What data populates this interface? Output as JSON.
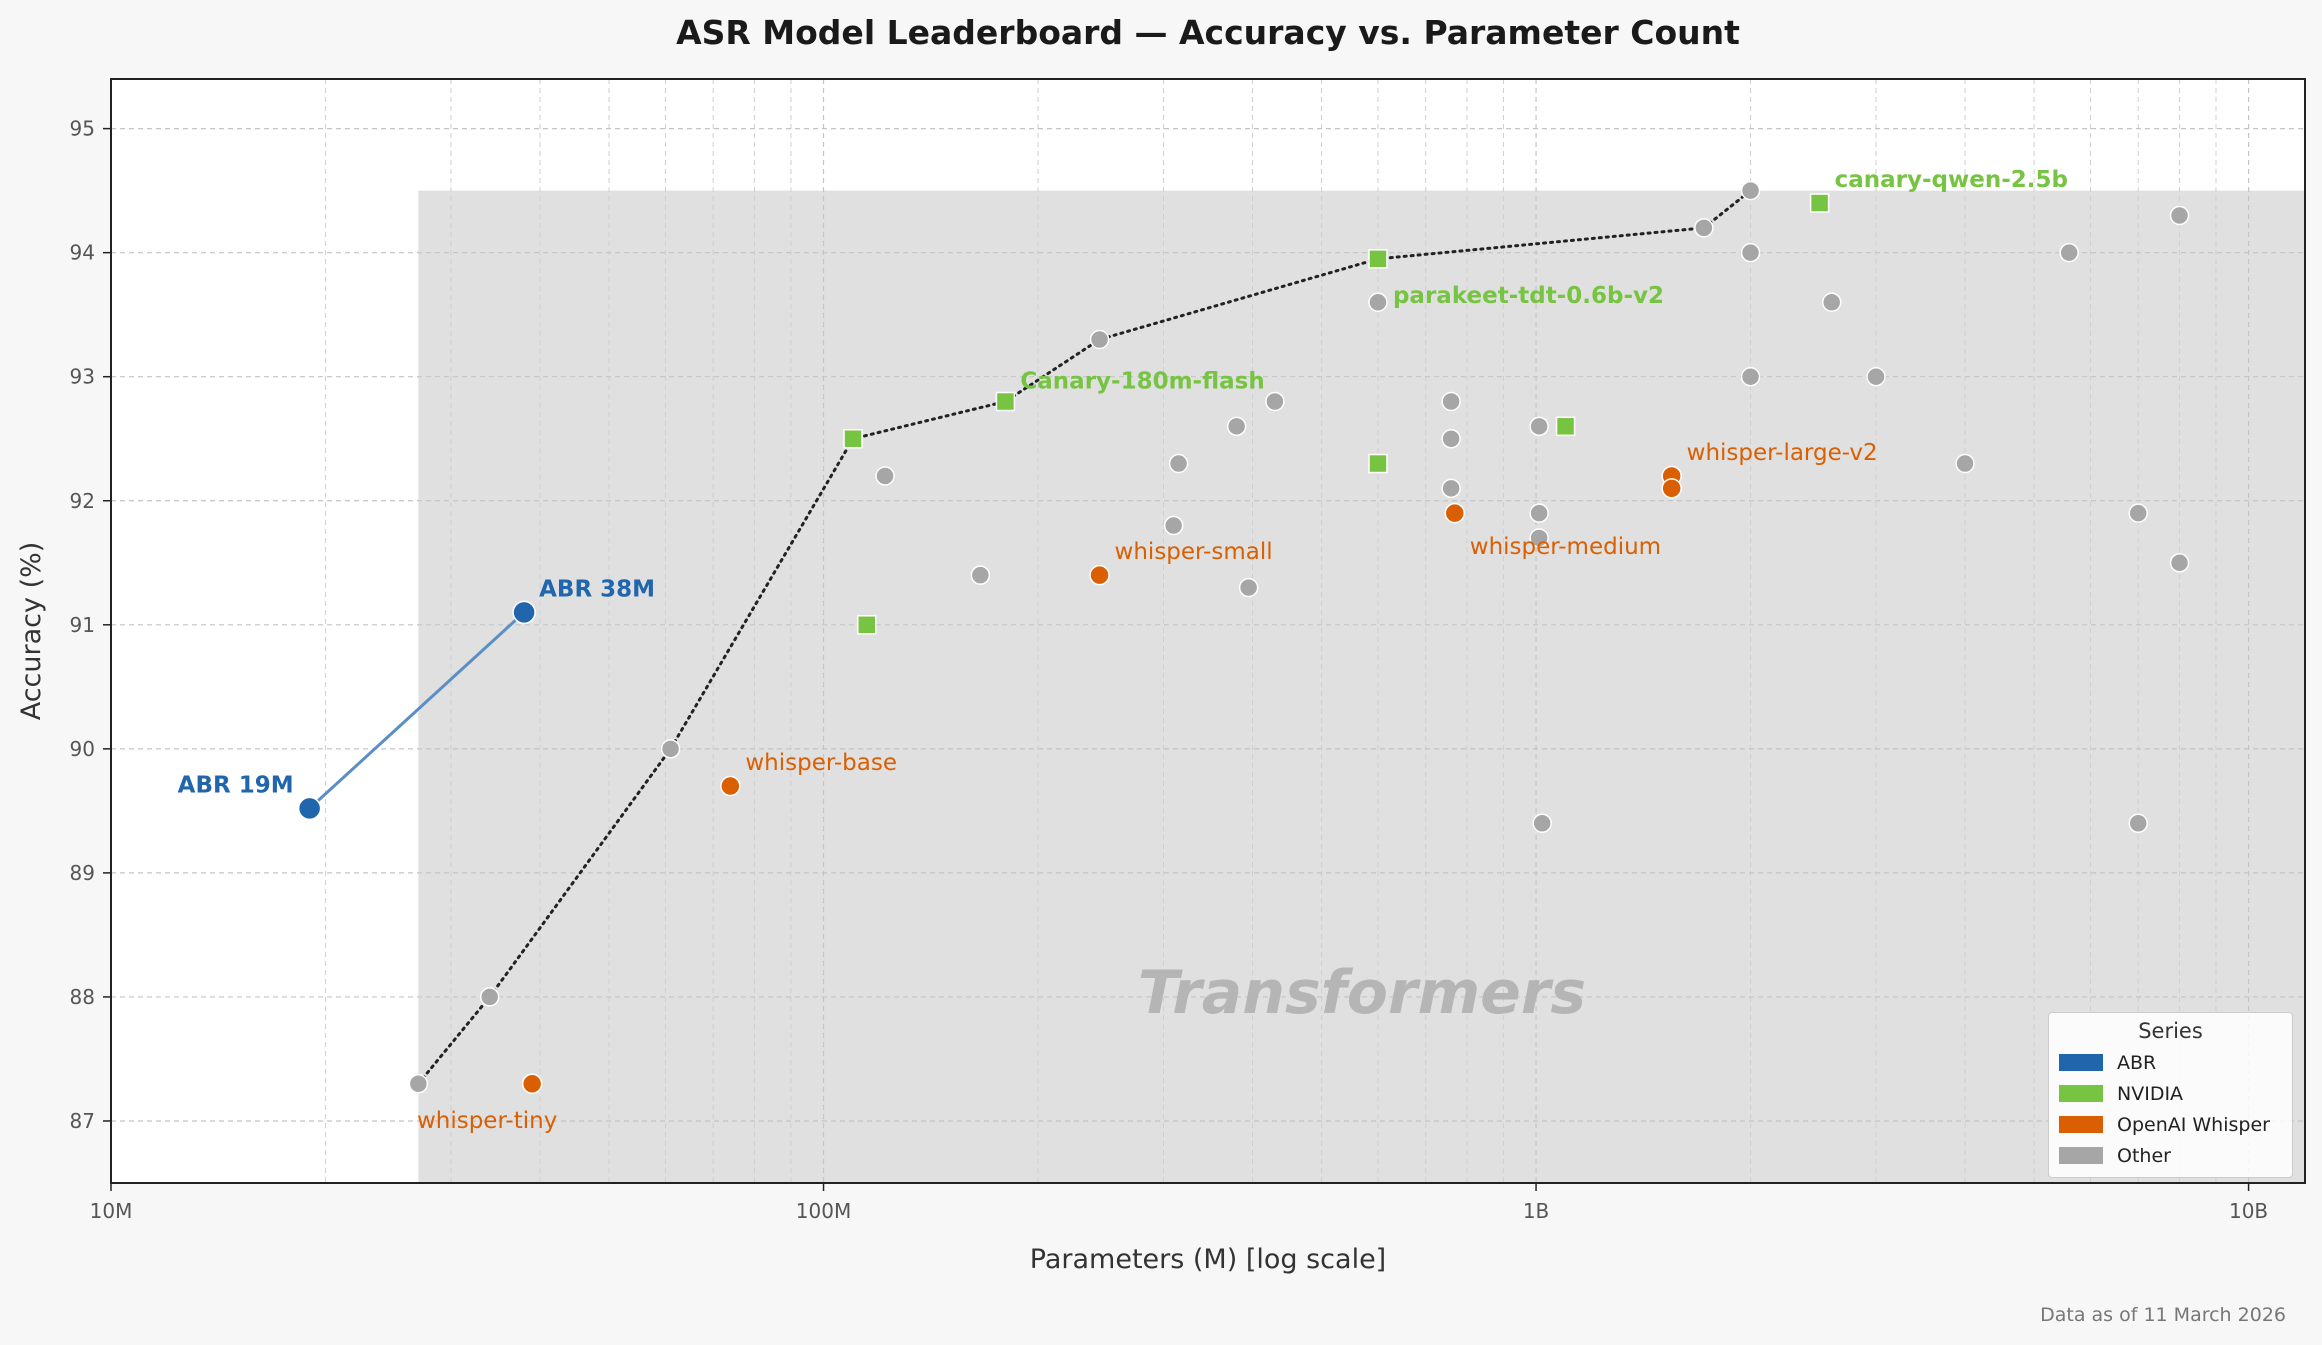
{
  "chart_data": {
    "type": "scatter",
    "title": "ASR Model Leaderboard  —  Accuracy vs. Parameter Count",
    "xlabel": "Parameters (M)  [log scale]",
    "ylabel": "Accuracy (%)",
    "x_scale": "log",
    "xlim": [
      10,
      12000
    ],
    "ylim": [
      86.5,
      95.4
    ],
    "x_ticks": [
      {
        "value": 10,
        "label": "10M"
      },
      {
        "value": 100,
        "label": "100M"
      },
      {
        "value": 1000,
        "label": "1B"
      },
      {
        "value": 10000,
        "label": "10B"
      }
    ],
    "y_ticks": [
      {
        "value": 87,
        "label": "87"
      },
      {
        "value": 88,
        "label": "88"
      },
      {
        "value": 89,
        "label": "89"
      },
      {
        "value": 90,
        "label": "90"
      },
      {
        "value": 91,
        "label": "91"
      },
      {
        "value": 92,
        "label": "92"
      },
      {
        "value": 93,
        "label": "93"
      },
      {
        "value": 94,
        "label": "94"
      },
      {
        "value": 95,
        "label": "95"
      }
    ],
    "grid": true,
    "legend_position": "bottom-right",
    "region_label": "Transformers",
    "series": [
      {
        "name": "ABR",
        "color": "#2166ac",
        "marker": "circle",
        "connected": true,
        "points": [
          {
            "x": 19,
            "y": 89.52,
            "label": "ABR 19M"
          },
          {
            "x": 38,
            "y": 91.1,
            "label": "ABR 38M"
          }
        ]
      },
      {
        "name": "NVIDIA",
        "color": "#76c442",
        "marker": "square",
        "points": [
          {
            "x": 110,
            "y": 92.5,
            "label": ""
          },
          {
            "x": 115,
            "y": 91.0,
            "label": ""
          },
          {
            "x": 180,
            "y": 92.8,
            "label": "Canary-180m-flash"
          },
          {
            "x": 600,
            "y": 93.95,
            "label": "parakeet-tdt-0.6b-v2"
          },
          {
            "x": 600,
            "y": 92.3,
            "label": ""
          },
          {
            "x": 1100,
            "y": 92.6,
            "label": ""
          },
          {
            "x": 2500,
            "y": 94.4,
            "label": "canary-qwen-2.5b"
          }
        ]
      },
      {
        "name": "OpenAI Whisper",
        "color": "#d95f02",
        "marker": "circle",
        "points": [
          {
            "x": 39,
            "y": 87.3,
            "label": "whisper-tiny"
          },
          {
            "x": 74,
            "y": 89.7,
            "label": "whisper-base"
          },
          {
            "x": 244,
            "y": 91.4,
            "label": "whisper-small"
          },
          {
            "x": 769,
            "y": 91.9,
            "label": "whisper-medium"
          },
          {
            "x": 1550,
            "y": 92.2,
            "label": "whisper-large-v2"
          },
          {
            "x": 1550,
            "y": 92.1,
            "label": ""
          }
        ]
      },
      {
        "name": "Other",
        "color": "#a6a6a6",
        "marker": "circle",
        "points": [
          {
            "x": 27,
            "y": 87.3
          },
          {
            "x": 34,
            "y": 88.0
          },
          {
            "x": 61,
            "y": 90.0
          },
          {
            "x": 122,
            "y": 92.2
          },
          {
            "x": 166,
            "y": 91.4
          },
          {
            "x": 244,
            "y": 93.3
          },
          {
            "x": 310,
            "y": 91.8
          },
          {
            "x": 315,
            "y": 92.3
          },
          {
            "x": 380,
            "y": 92.6
          },
          {
            "x": 395,
            "y": 91.3
          },
          {
            "x": 430,
            "y": 92.8
          },
          {
            "x": 600,
            "y": 93.6
          },
          {
            "x": 760,
            "y": 92.8
          },
          {
            "x": 760,
            "y": 92.5
          },
          {
            "x": 760,
            "y": 92.1
          },
          {
            "x": 1010,
            "y": 92.6
          },
          {
            "x": 1010,
            "y": 91.9
          },
          {
            "x": 1010,
            "y": 91.7
          },
          {
            "x": 1020,
            "y": 89.4
          },
          {
            "x": 1720,
            "y": 94.2
          },
          {
            "x": 2000,
            "y": 94.5
          },
          {
            "x": 2000,
            "y": 94.0
          },
          {
            "x": 2000,
            "y": 93.0
          },
          {
            "x": 2600,
            "y": 93.6
          },
          {
            "x": 3000,
            "y": 93.0
          },
          {
            "x": 4000,
            "y": 92.3
          },
          {
            "x": 5600,
            "y": 94.0
          },
          {
            "x": 7000,
            "y": 91.9
          },
          {
            "x": 7000,
            "y": 89.4
          },
          {
            "x": 8000,
            "y": 94.3
          },
          {
            "x": 8000,
            "y": 91.5
          }
        ]
      }
    ],
    "frontier": [
      {
        "x": 27,
        "y": 87.3
      },
      {
        "x": 34,
        "y": 88.0
      },
      {
        "x": 61,
        "y": 90.0
      },
      {
        "x": 110,
        "y": 92.5
      },
      {
        "x": 180,
        "y": 92.8
      },
      {
        "x": 244,
        "y": 93.3
      },
      {
        "x": 600,
        "y": 93.95
      },
      {
        "x": 1720,
        "y": 94.2
      },
      {
        "x": 2000,
        "y": 94.5
      }
    ]
  },
  "legend": {
    "title": "Series",
    "items": [
      {
        "label": "ABR",
        "color": "#2166ac"
      },
      {
        "label": "NVIDIA",
        "color": "#76c442"
      },
      {
        "label": "OpenAI Whisper",
        "color": "#d95f02"
      },
      {
        "label": "Other",
        "color": "#a6a6a6"
      }
    ]
  },
  "footnote": "Data as of 11 March 2026"
}
